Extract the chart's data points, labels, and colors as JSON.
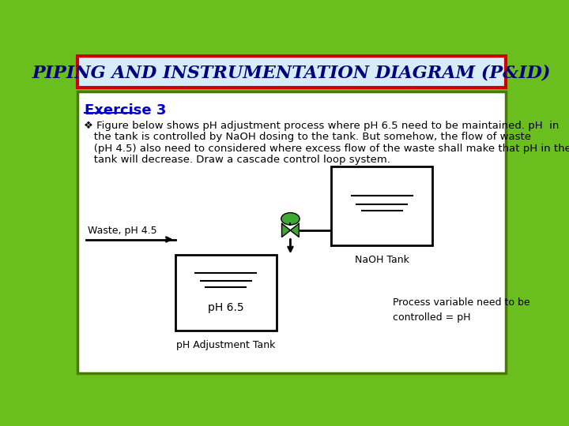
{
  "title": "PIPING AND INSTRUMENTATION DIAGRAM (P&ID)",
  "title_bg": "#d6ecf8",
  "title_border": "#cc0000",
  "outer_bg": "#6abf1e",
  "inner_bg": "#ffffff",
  "inner_border": "#4a7a00",
  "exercise_label": "Exercise 3",
  "waste_label": "Waste, pH 4.5",
  "naoh_label": "NaOH Tank",
  "ph_label": "pH 6.5",
  "tank_label": "pH Adjustment Tank",
  "process_var_text": "Process variable need to be\ncontrolled = pH",
  "bullet_lines": [
    "❖ Figure below shows pH adjustment process where pH 6.5 need to be maintained. pH  in",
    "   the tank is controlled by NaOH dosing to the tank. But somehow, the flow of waste",
    "   (pH 4.5) also need to considered where excess flow of the waste shall make that pH in the",
    "   tank will decrease. Draw a cascade control loop system."
  ],
  "font_color": "#000000",
  "exercise_color": "#0000cc",
  "valve_green": "#3da832",
  "line_color": "#000000"
}
